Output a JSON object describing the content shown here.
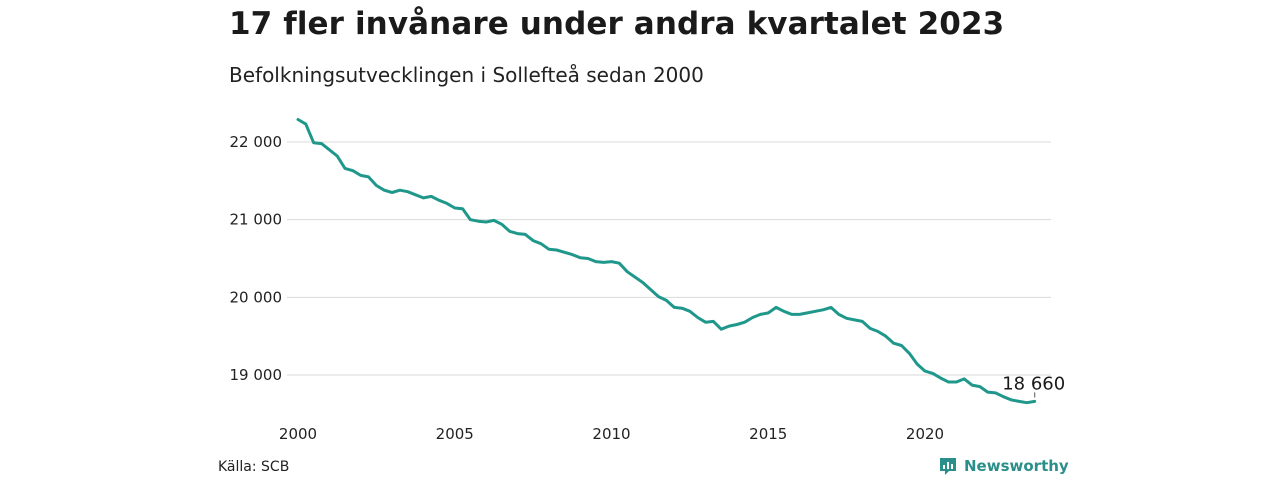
{
  "header": {
    "title": "17 fler invånare under andra kvartalet 2023",
    "subtitle": "Befolkningsutvecklingen i Sollefteå sedan 2000"
  },
  "footer": {
    "source": "Källa: SCB",
    "brand": "Newsworthy",
    "brand_icon": "bar-chart-logo-icon"
  },
  "colors": {
    "line": "#1f978b",
    "grid": "#d9d9d9",
    "brand": "#2a8f8a"
  },
  "chart_data": {
    "type": "line",
    "title": "17 fler invånare under andra kvartalet 2023",
    "subtitle": "Befolkningsutvecklingen i Sollefteå sedan 2000",
    "xlabel": "",
    "ylabel": "",
    "xlim": [
      2000,
      2024
    ],
    "ylim": [
      18600,
      22400
    ],
    "x_ticks": [
      2000,
      2005,
      2010,
      2015,
      2020
    ],
    "x_tick_labels": [
      "2000",
      "2005",
      "2010",
      "2015",
      "2020"
    ],
    "y_ticks": [
      19000,
      20000,
      21000,
      22000
    ],
    "y_tick_labels": [
      "19 000",
      "20 000",
      "21 000",
      "22 000"
    ],
    "grid": "horizontal",
    "legend": "none",
    "annotation": {
      "x": 2023.5,
      "y": 18660,
      "text": "18 660"
    },
    "series": [
      {
        "x": [
          2000.0,
          2000.25,
          2000.5,
          2000.75,
          2001.0,
          2001.25,
          2001.5,
          2001.75,
          2002.0,
          2002.25,
          2002.5,
          2002.75,
          2003.0,
          2003.25,
          2003.5,
          2003.75,
          2004.0,
          2004.25,
          2004.5,
          2004.75,
          2005.0,
          2005.25,
          2005.5,
          2005.75,
          2006.0,
          2006.25,
          2006.5,
          2006.75,
          2007.0,
          2007.25,
          2007.5,
          2007.75,
          2008.0,
          2008.25,
          2008.5,
          2008.75,
          2009.0,
          2009.25,
          2009.5,
          2009.75,
          2010.0,
          2010.25,
          2010.5,
          2010.75,
          2011.0,
          2011.25,
          2011.5,
          2011.75,
          2012.0,
          2012.25,
          2012.5,
          2012.75,
          2013.0,
          2013.25,
          2013.5,
          2013.75,
          2014.0,
          2014.25,
          2014.5,
          2014.75,
          2015.0,
          2015.25,
          2015.5,
          2015.75,
          2016.0,
          2016.25,
          2016.5,
          2016.75,
          2017.0,
          2017.25,
          2017.5,
          2017.75,
          2018.0,
          2018.25,
          2018.5,
          2018.75,
          2019.0,
          2019.25,
          2019.5,
          2019.75,
          2020.0,
          2020.25,
          2020.5,
          2020.75,
          2021.0,
          2021.25,
          2021.5,
          2021.75,
          2022.0,
          2022.25,
          2022.5,
          2022.75,
          2023.0,
          2023.25,
          2023.5
        ],
        "values": [
          22290,
          22230,
          21990,
          21980,
          21900,
          21820,
          21660,
          21630,
          21570,
          21550,
          21440,
          21380,
          21350,
          21380,
          21360,
          21320,
          21280,
          21300,
          21250,
          21210,
          21150,
          21140,
          21000,
          20980,
          20970,
          20990,
          20940,
          20850,
          20820,
          20810,
          20730,
          20690,
          20620,
          20610,
          20580,
          20550,
          20510,
          20500,
          20460,
          20450,
          20460,
          20440,
          20330,
          20260,
          20190,
          20100,
          20010,
          19960,
          19870,
          19860,
          19820,
          19740,
          19680,
          19690,
          19590,
          19630,
          19650,
          19680,
          19740,
          19780,
          19800,
          19870,
          19820,
          19780,
          19780,
          19800,
          19820,
          19840,
          19870,
          19780,
          19730,
          19710,
          19690,
          19600,
          19560,
          19500,
          19410,
          19380,
          19280,
          19140,
          19050,
          19020,
          18960,
          18910,
          18910,
          18950,
          18870,
          18850,
          18780,
          18770,
          18720,
          18680,
          18660,
          18643,
          18660
        ]
      }
    ]
  }
}
